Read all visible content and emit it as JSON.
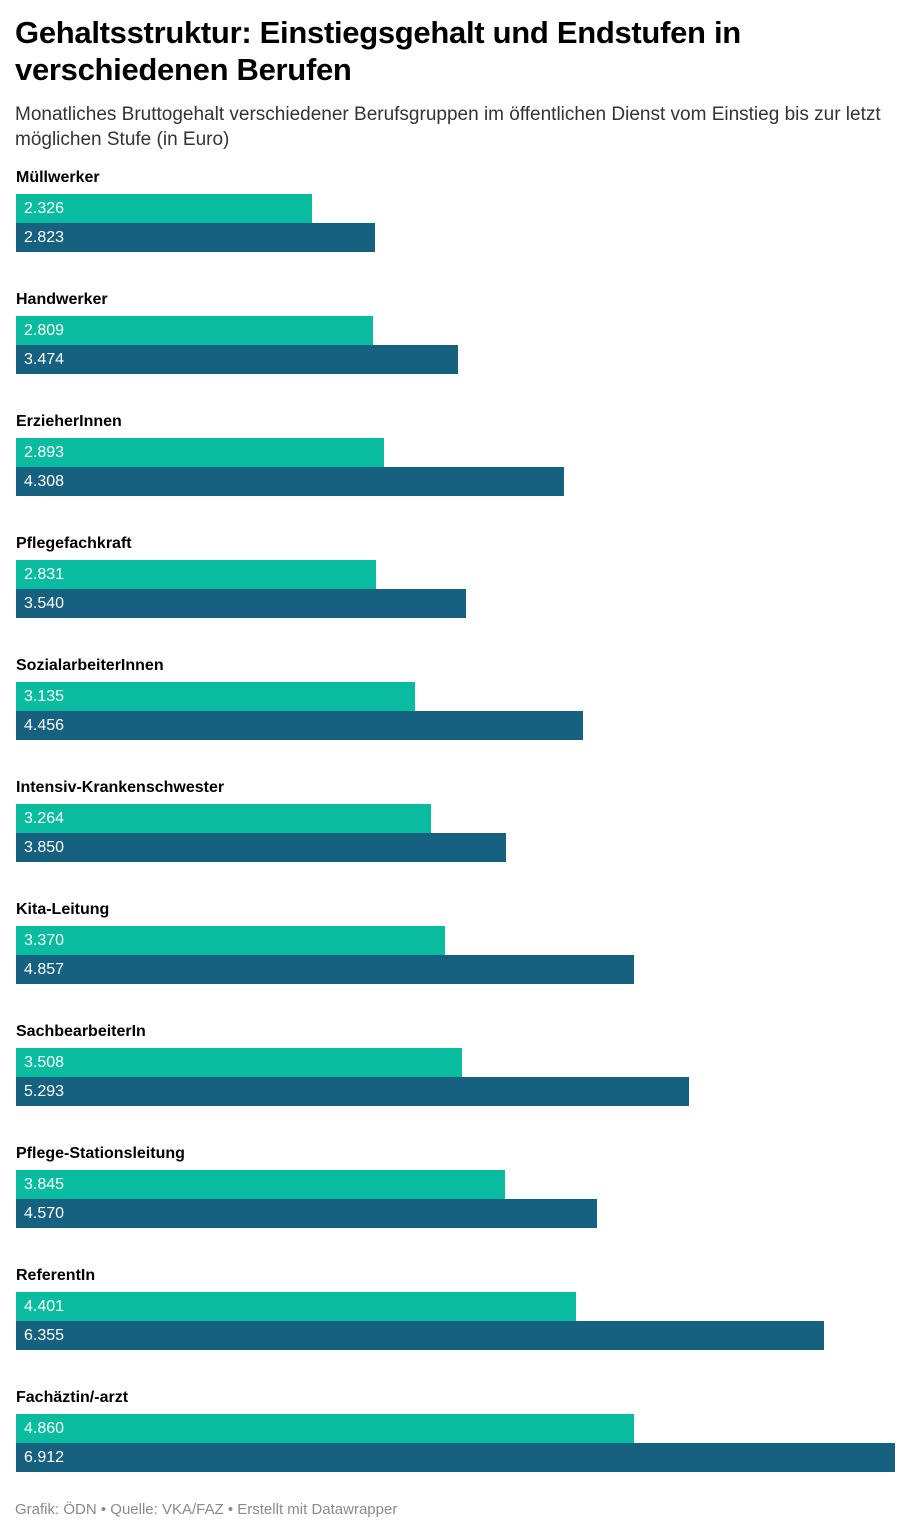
{
  "chart_data": {
    "type": "bar",
    "orientation": "horizontal",
    "title": "Gehaltsstruktur: Einstiegsgehalt und Endstufen in verschiedenen Berufen",
    "subtitle": "Monatliches Bruttogehalt verschiedener Berufsgruppen im öffentlichen Dienst vom Einstieg bis zur letzt möglichen Stufe (in Euro)",
    "categories": [
      "Müllwerker",
      "Handwerker",
      "ErzieherInnen",
      "Pflegefachkraft",
      "SozialarbeiterInnen",
      "Intensiv-Krankenschwester",
      "Kita-Leitung",
      "SachbearbeiterIn",
      "Pflege-Stationsleitung",
      "ReferentIn",
      "Fachäztin/-arzt"
    ],
    "series": [
      {
        "color": "#0abc9f",
        "values": [
          2326,
          2809,
          2893,
          2831,
          3135,
          3264,
          3370,
          3508,
          3845,
          4401,
          4860
        ],
        "labels": [
          "2.326",
          "2.809",
          "2.893",
          "2.831",
          "3.135",
          "3.264",
          "3.370",
          "3.508",
          "3.845",
          "4.401",
          "4.860"
        ]
      },
      {
        "color": "#176180",
        "values": [
          2823,
          3474,
          4308,
          3540,
          4456,
          3850,
          4857,
          5293,
          4570,
          6355,
          6912
        ],
        "labels": [
          "2.823",
          "3.474",
          "4.308",
          "3.540",
          "4.456",
          "3.850",
          "4.857",
          "5.293",
          "4.570",
          "6.355",
          "6.912"
        ]
      }
    ],
    "xlim": [
      0,
      6912
    ],
    "grid": false,
    "legend": "none"
  },
  "footer": {
    "grafik": "Grafik: ÖDN",
    "sep1": " • ",
    "quelle": "Quelle: VKA/FAZ",
    "sep2": " • ",
    "erstellt": "Erstellt mit Datawrapper"
  }
}
